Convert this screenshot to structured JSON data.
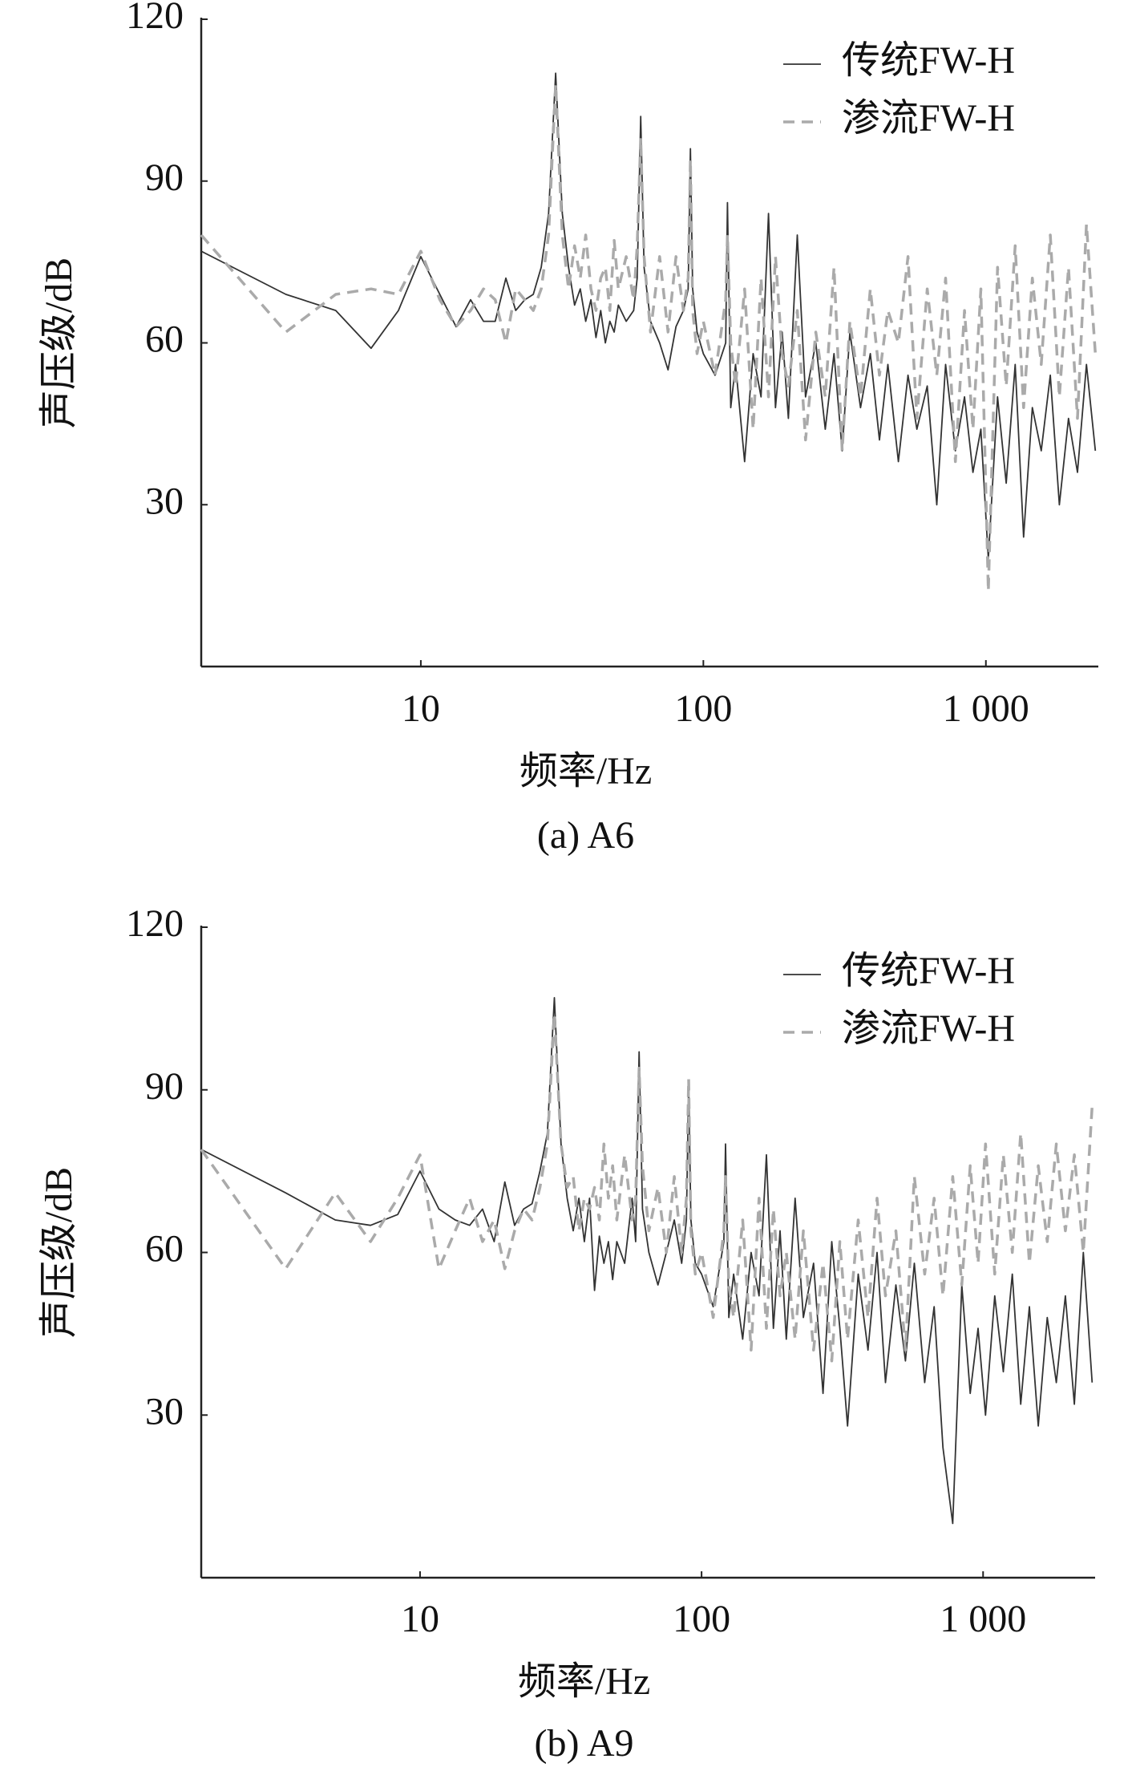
{
  "chart_data": [
    {
      "type": "line",
      "title": "(a) A6",
      "x_label": "频率/Hz",
      "y_label": "声压级/dB",
      "xscale": "log",
      "xlim": [
        1.67,
        2500
      ],
      "xticks": [
        10,
        100,
        {
          "value": 1000,
          "label": "1 000"
        }
      ],
      "ylim": [
        0,
        120
      ],
      "yticks": [
        30,
        60,
        90,
        120
      ],
      "legend": "upper right",
      "x": [
        1.67,
        3.33,
        5,
        6.67,
        8.33,
        10,
        11.67,
        13.33,
        15,
        16.67,
        18.33,
        20,
        21.67,
        23.33,
        25,
        26.67,
        28.33,
        30,
        31.67,
        33.33,
        35,
        36.67,
        38.33,
        40,
        41.67,
        43.33,
        45,
        46.67,
        48.33,
        50,
        53.33,
        56.67,
        58.33,
        60,
        61.67,
        65,
        70,
        75,
        80,
        85,
        88.33,
        90,
        91.67,
        95,
        100,
        110,
        120,
        121.67,
        125,
        130,
        140,
        150,
        160,
        170,
        180,
        190,
        200,
        215,
        230,
        250,
        270,
        290,
        310,
        330,
        360,
        390,
        420,
        450,
        490,
        530,
        570,
        620,
        670,
        720,
        780,
        840,
        900,
        960,
        1020,
        1100,
        1180,
        1270,
        1360,
        1460,
        1570,
        1690,
        1820,
        1960,
        2110,
        2270,
        2440
      ],
      "series": [
        {
          "name": "传统FW-H",
          "color": "#333333",
          "dash": false,
          "values": [
            77,
            69,
            66,
            59,
            66,
            76,
            69,
            63,
            68,
            64,
            64,
            72,
            66,
            68,
            69,
            74,
            84,
            110,
            84,
            74,
            67,
            70,
            64,
            68,
            61,
            66,
            60,
            64,
            62,
            67,
            64,
            66,
            72,
            102,
            74,
            64,
            60,
            55,
            63,
            66,
            70,
            96,
            70,
            62,
            58,
            54,
            60,
            86,
            48,
            56,
            38,
            58,
            50,
            84,
            48,
            62,
            46,
            80,
            50,
            60,
            44,
            58,
            40,
            62,
            48,
            58,
            42,
            56,
            38,
            54,
            44,
            52,
            30,
            56,
            40,
            50,
            36,
            44,
            20,
            50,
            34,
            56,
            24,
            48,
            40,
            54,
            30,
            46,
            36,
            56,
            40
          ]
        },
        {
          "name": "渗流FW-H",
          "color": "#aaaaaa",
          "dash": true,
          "values": [
            80,
            62,
            69,
            70,
            69,
            77,
            68,
            63,
            66,
            70,
            68,
            60,
            70,
            68,
            66,
            70,
            80,
            108,
            80,
            70,
            78,
            72,
            80,
            70,
            66,
            72,
            74,
            66,
            79,
            70,
            76,
            68,
            78,
            98,
            76,
            62,
            76,
            62,
            76,
            66,
            72,
            94,
            66,
            58,
            64,
            54,
            68,
            80,
            60,
            52,
            70,
            44,
            72,
            50,
            76,
            58,
            52,
            66,
            42,
            62,
            50,
            74,
            40,
            64,
            50,
            70,
            54,
            66,
            60,
            76,
            46,
            70,
            54,
            72,
            38,
            66,
            44,
            70,
            14,
            74,
            52,
            78,
            48,
            72,
            56,
            80,
            50,
            74,
            46,
            82,
            58
          ]
        }
      ]
    },
    {
      "type": "line",
      "title": "(b) A9",
      "x_label": "频率/Hz",
      "y_label": "声压级/dB",
      "xscale": "log",
      "xlim": [
        1.67,
        2500
      ],
      "xticks": [
        10,
        100,
        {
          "value": 1000,
          "label": "1 000"
        }
      ],
      "ylim": [
        0,
        120
      ],
      "yticks": [
        30,
        60,
        90,
        120
      ],
      "legend": "upper right",
      "x": [
        1.67,
        3.33,
        5,
        6.67,
        8.33,
        10,
        11.67,
        13.33,
        15,
        16.67,
        18.33,
        20,
        21.67,
        23.33,
        25,
        26.67,
        28.33,
        30,
        31.67,
        33.33,
        35,
        36.67,
        38.33,
        40,
        41.67,
        43.33,
        45,
        46.67,
        48.33,
        50,
        53.33,
        56.67,
        58.33,
        60,
        61.67,
        65,
        70,
        75,
        80,
        85,
        88.33,
        90,
        91.67,
        95,
        100,
        110,
        120,
        121.67,
        125,
        130,
        140,
        150,
        160,
        170,
        180,
        190,
        200,
        215,
        230,
        250,
        270,
        290,
        310,
        330,
        360,
        390,
        420,
        450,
        490,
        530,
        570,
        620,
        670,
        720,
        780,
        840,
        900,
        960,
        1020,
        1100,
        1180,
        1270,
        1360,
        1460,
        1570,
        1690,
        1820,
        1960,
        2110,
        2270,
        2440
      ],
      "series": [
        {
          "name": "传统FW-H",
          "color": "#333333",
          "dash": false,
          "values": [
            79,
            71,
            66,
            65,
            67,
            75,
            68,
            66,
            65,
            68,
            62,
            73,
            65,
            68,
            69,
            75,
            82,
            107,
            80,
            70,
            64,
            70,
            62,
            70,
            53,
            63,
            58,
            62,
            55,
            62,
            58,
            70,
            62,
            97,
            68,
            60,
            54,
            60,
            66,
            58,
            66,
            91,
            66,
            58,
            56,
            50,
            62,
            80,
            48,
            56,
            44,
            60,
            52,
            78,
            46,
            64,
            44,
            70,
            48,
            58,
            34,
            62,
            46,
            28,
            56,
            42,
            60,
            36,
            54,
            40,
            58,
            36,
            50,
            24,
            10,
            54,
            34,
            46,
            30,
            52,
            38,
            56,
            32,
            50,
            28,
            48,
            36,
            52,
            32,
            60,
            36
          ]
        },
        {
          "name": "渗流FW-H",
          "color": "#aaaaaa",
          "dash": true,
          "values": [
            79,
            57,
            71,
            62,
            70,
            78,
            57,
            64,
            70,
            62,
            66,
            57,
            64,
            68,
            66,
            72,
            80,
            104,
            80,
            72,
            74,
            64,
            70,
            68,
            72,
            66,
            80,
            70,
            76,
            66,
            78,
            66,
            70,
            94,
            76,
            64,
            72,
            60,
            74,
            60,
            70,
            92,
            64,
            56,
            60,
            48,
            64,
            74,
            54,
            48,
            66,
            42,
            70,
            46,
            68,
            52,
            60,
            44,
            64,
            42,
            58,
            40,
            62,
            44,
            66,
            48,
            70,
            52,
            64,
            42,
            74,
            56,
            70,
            52,
            74,
            54,
            76,
            58,
            80,
            56,
            78,
            60,
            82,
            58,
            76,
            62,
            80,
            64,
            78,
            60,
            87
          ]
        }
      ]
    }
  ]
}
